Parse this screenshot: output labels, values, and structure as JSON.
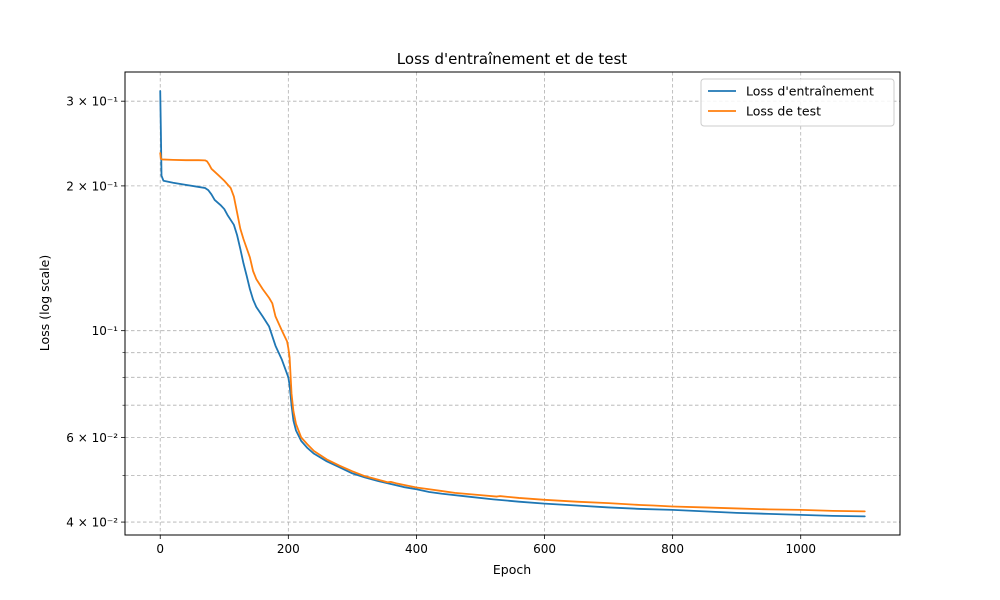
{
  "chart_data": {
    "type": "line",
    "title": "Loss d'entraînement et de test",
    "xlabel": "Epoch",
    "ylabel": "Loss (log scale)",
    "y_scale": "log",
    "xlim": [
      -55,
      1155
    ],
    "ylim": [
      0.0376,
      0.345
    ],
    "x_ticks": [
      0,
      200,
      400,
      600,
      800,
      1000
    ],
    "y_major_ticks": [
      {
        "value": 0.04,
        "label": "4 × 10⁻²"
      },
      {
        "value": 0.06,
        "label": "6 × 10⁻²"
      },
      {
        "value": 0.1,
        "label": "10⁻¹"
      },
      {
        "value": 0.2,
        "label": "2 × 10⁻¹"
      },
      {
        "value": 0.3,
        "label": "3 × 10⁻¹"
      }
    ],
    "y_minor_ticks": [
      0.05,
      0.07,
      0.08,
      0.09
    ],
    "grid": true,
    "legend_position": "top-right",
    "series": [
      {
        "name": "Loss d'entraînement",
        "color": "#1f77b4",
        "points": [
          [
            0,
            0.315
          ],
          [
            1,
            0.26
          ],
          [
            2,
            0.21
          ],
          [
            5,
            0.205
          ],
          [
            20,
            0.203
          ],
          [
            40,
            0.201
          ],
          [
            60,
            0.199
          ],
          [
            70,
            0.198
          ],
          [
            75,
            0.196
          ],
          [
            80,
            0.192
          ],
          [
            85,
            0.187
          ],
          [
            95,
            0.182
          ],
          [
            100,
            0.179
          ],
          [
            105,
            0.174
          ],
          [
            115,
            0.166
          ],
          [
            120,
            0.158
          ],
          [
            125,
            0.148
          ],
          [
            130,
            0.138
          ],
          [
            135,
            0.13
          ],
          [
            140,
            0.122
          ],
          [
            145,
            0.116
          ],
          [
            150,
            0.112
          ],
          [
            160,
            0.107
          ],
          [
            170,
            0.102
          ],
          [
            180,
            0.093
          ],
          [
            190,
            0.087
          ],
          [
            200,
            0.08
          ],
          [
            202,
            0.077
          ],
          [
            205,
            0.07
          ],
          [
            208,
            0.065
          ],
          [
            212,
            0.062
          ],
          [
            220,
            0.059
          ],
          [
            230,
            0.057
          ],
          [
            240,
            0.0555
          ],
          [
            260,
            0.0535
          ],
          [
            280,
            0.052
          ],
          [
            300,
            0.0505
          ],
          [
            320,
            0.0495
          ],
          [
            340,
            0.0487
          ],
          [
            360,
            0.048
          ],
          [
            380,
            0.0473
          ],
          [
            400,
            0.0468
          ],
          [
            420,
            0.0462
          ],
          [
            440,
            0.0458
          ],
          [
            480,
            0.0452
          ],
          [
            520,
            0.0446
          ],
          [
            560,
            0.0441
          ],
          [
            600,
            0.0437
          ],
          [
            650,
            0.0433
          ],
          [
            700,
            0.0429
          ],
          [
            750,
            0.0426
          ],
          [
            800,
            0.0424
          ],
          [
            850,
            0.0421
          ],
          [
            900,
            0.0418
          ],
          [
            950,
            0.0416
          ],
          [
            1000,
            0.0414
          ],
          [
            1050,
            0.0412
          ],
          [
            1100,
            0.0411
          ]
        ]
      },
      {
        "name": "Loss de test",
        "color": "#ff7f0e",
        "points": [
          [
            0,
            0.234
          ],
          [
            1,
            0.228
          ],
          [
            3,
            0.227
          ],
          [
            20,
            0.2265
          ],
          [
            40,
            0.2262
          ],
          [
            60,
            0.2262
          ],
          [
            70,
            0.226
          ],
          [
            73,
            0.225
          ],
          [
            76,
            0.222
          ],
          [
            80,
            0.217
          ],
          [
            90,
            0.211
          ],
          [
            100,
            0.205
          ],
          [
            110,
            0.198
          ],
          [
            115,
            0.19
          ],
          [
            120,
            0.176
          ],
          [
            125,
            0.163
          ],
          [
            130,
            0.155
          ],
          [
            140,
            0.142
          ],
          [
            145,
            0.133
          ],
          [
            150,
            0.128
          ],
          [
            160,
            0.122
          ],
          [
            170,
            0.117
          ],
          [
            175,
            0.114
          ],
          [
            180,
            0.107
          ],
          [
            190,
            0.1
          ],
          [
            198,
            0.095
          ],
          [
            200,
            0.092
          ],
          [
            202,
            0.088
          ],
          [
            205,
            0.074
          ],
          [
            208,
            0.068
          ],
          [
            212,
            0.064
          ],
          [
            220,
            0.06
          ],
          [
            230,
            0.058
          ],
          [
            240,
            0.0562
          ],
          [
            260,
            0.054
          ],
          [
            280,
            0.0524
          ],
          [
            300,
            0.051
          ],
          [
            320,
            0.0498
          ],
          [
            340,
            0.049
          ],
          [
            355,
            0.0484
          ],
          [
            360,
            0.0485
          ],
          [
            370,
            0.0481
          ],
          [
            380,
            0.0478
          ],
          [
            400,
            0.0472
          ],
          [
            420,
            0.0468
          ],
          [
            440,
            0.0464
          ],
          [
            460,
            0.046
          ],
          [
            500,
            0.0455
          ],
          [
            525,
            0.0452
          ],
          [
            530,
            0.0453
          ],
          [
            560,
            0.0449
          ],
          [
            600,
            0.0445
          ],
          [
            650,
            0.0441
          ],
          [
            700,
            0.0438
          ],
          [
            750,
            0.0434
          ],
          [
            770,
            0.0433
          ],
          [
            800,
            0.0431
          ],
          [
            850,
            0.0429
          ],
          [
            900,
            0.0427
          ],
          [
            950,
            0.0425
          ],
          [
            1000,
            0.0424
          ],
          [
            1050,
            0.0422
          ],
          [
            1100,
            0.0421
          ]
        ]
      }
    ]
  }
}
